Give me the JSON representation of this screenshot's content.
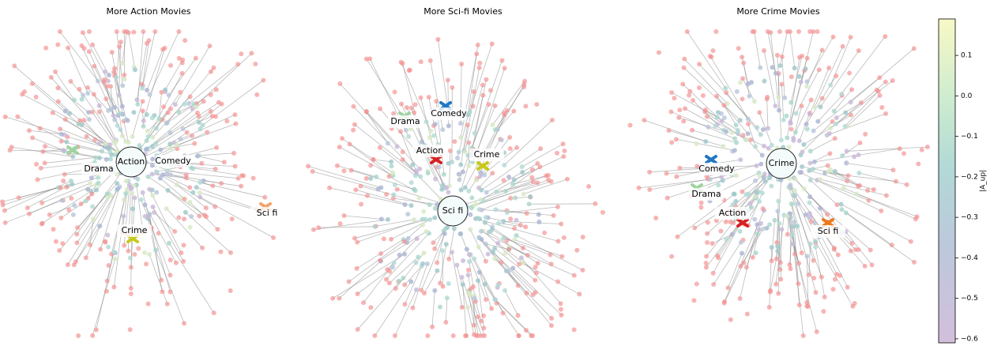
{
  "panels": [
    {
      "title": "More Action Movies",
      "hub": "Action",
      "labels": [
        {
          "text": "Comedy",
          "color": null
        },
        {
          "text": "Drama",
          "color": "#9fd39f"
        },
        {
          "text": "Crime",
          "color": "#c8c81a"
        },
        {
          "text": "Sci fi",
          "color": "#f5a36a"
        }
      ]
    },
    {
      "title": "More Sci-fi Movies",
      "hub": "Sci fi",
      "labels": [
        {
          "text": "Drama",
          "color": "#9fd39f"
        },
        {
          "text": "Comedy",
          "color": "#1f77c4"
        },
        {
          "text": "Action",
          "color": "#d62020"
        },
        {
          "text": "Crime",
          "color": "#c8c81a"
        }
      ]
    },
    {
      "title": "More Crime Movies",
      "hub": "Crime",
      "labels": [
        {
          "text": "Comedy",
          "color": "#1f77c4"
        },
        {
          "text": "Drama",
          "color": "#9fd39f"
        },
        {
          "text": "Action",
          "color": "#d62020"
        },
        {
          "text": "Sci fi",
          "color": "#f07818"
        }
      ]
    }
  ],
  "colorbar": {
    "label": "|A_up|",
    "lim": [
      -0.61,
      0.19
    ],
    "ticks": [
      0.1,
      {
        "value": 0,
        "label": "0.0"
      },
      {
        "value": -0.1,
        "label": "−0.1"
      },
      {
        "value": -0.2,
        "label": "−0.2"
      },
      {
        "value": -0.3,
        "label": "−0.3"
      },
      {
        "value": -0.4,
        "label": "−0.4"
      },
      {
        "value": -0.5,
        "label": "−0.5"
      },
      {
        "value": -0.6,
        "label": "−0.6"
      }
    ]
  }
}
